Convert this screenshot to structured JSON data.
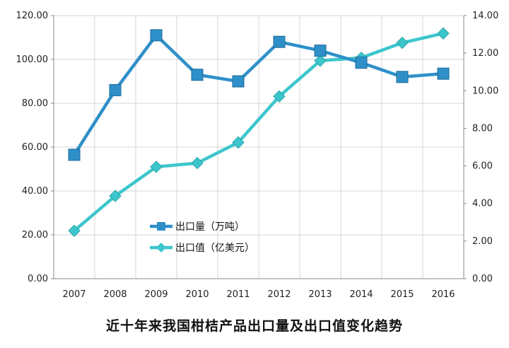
{
  "chart_data": {
    "type": "line",
    "title": "近十年来我国柑桔产品出口量及出口值变化趋势",
    "categories": [
      "2007",
      "2008",
      "2009",
      "2010",
      "2011",
      "2012",
      "2013",
      "2014",
      "2015",
      "2016"
    ],
    "y_left_ticks": [
      "0.00",
      "20.00",
      "40.00",
      "60.00",
      "80.00",
      "100.00",
      "120.00"
    ],
    "y_right_ticks": [
      "0.00",
      "2.00",
      "4.00",
      "6.00",
      "8.00",
      "10.00",
      "12.00",
      "14.00"
    ],
    "y_left_range": [
      0,
      120
    ],
    "y_right_range": [
      0,
      14
    ],
    "grid": true,
    "legend_position": "center-left",
    "series": [
      {
        "name": "出口量（万吨）",
        "axis": "left",
        "color": "#2f90c9",
        "marker": "square",
        "values": [
          56.5,
          86,
          111,
          93,
          90,
          108,
          104,
          98.5,
          92,
          93.5
        ]
      },
      {
        "name": "出口值（亿美元）",
        "axis": "right",
        "color": "#3cc6cc",
        "marker": "diamond",
        "values": [
          2.55,
          4.4,
          5.95,
          6.15,
          7.25,
          9.7,
          11.6,
          11.75,
          12.55,
          13.05
        ]
      }
    ]
  }
}
